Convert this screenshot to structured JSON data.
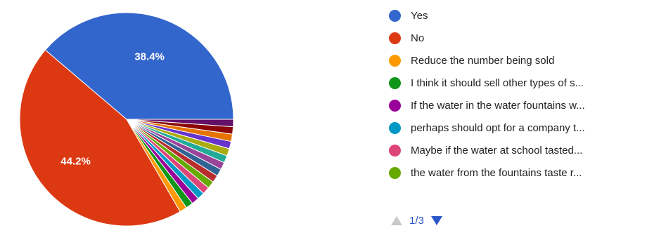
{
  "chart_data": {
    "type": "pie",
    "slices": [
      {
        "label": "Yes",
        "value": 38.4,
        "color": "#3366cc",
        "data_label": "38.4%"
      },
      {
        "label": "No",
        "value": 44.2,
        "color": "#dc3912",
        "data_label": "44.2%"
      },
      {
        "label": "Reduce the number being sold",
        "value": 1.1,
        "color": "#ff9900"
      },
      {
        "label": "I think it should sell other types of s...",
        "value": 1.1,
        "color": "#109618"
      },
      {
        "label": "If the water in the water fountains w...",
        "value": 1.1,
        "color": "#990099"
      },
      {
        "label": "perhaps should opt for a company t...",
        "value": 1.1,
        "color": "#0099c6"
      },
      {
        "label": "Maybe if the water at school tasted...",
        "value": 1.1,
        "color": "#dd4477"
      },
      {
        "label": "the water from the fountains taste r...",
        "value": 1.1,
        "color": "#66aa00"
      },
      {
        "value": 1.1,
        "color": "#b82e2e"
      },
      {
        "value": 1.1,
        "color": "#316395"
      },
      {
        "value": 1.1,
        "color": "#994499"
      },
      {
        "value": 1.1,
        "color": "#22aa99"
      },
      {
        "value": 1.1,
        "color": "#aaaa11"
      },
      {
        "value": 1.1,
        "color": "#6633cc"
      },
      {
        "value": 1.1,
        "color": "#e67300"
      },
      {
        "value": 1.1,
        "color": "#8b0707"
      },
      {
        "value": 1.1,
        "color": "#651067"
      }
    ]
  },
  "legend": {
    "items": [
      {
        "label": "Yes",
        "color": "#3366cc"
      },
      {
        "label": "No",
        "color": "#dc3912"
      },
      {
        "label": "Reduce the number being sold",
        "color": "#ff9900"
      },
      {
        "label": "I think it should sell other types of s...",
        "color": "#109618"
      },
      {
        "label": "If the water in the water fountains w...",
        "color": "#990099"
      },
      {
        "label": "perhaps should opt for a company t...",
        "color": "#0099c6"
      },
      {
        "label": "Maybe if the water at school tasted...",
        "color": "#dd4477"
      },
      {
        "label": "the water from the fountains taste r...",
        "color": "#66aa00"
      }
    ]
  },
  "pager": {
    "text": "1/3",
    "prev_icon": "triangle-up-icon",
    "next_icon": "triangle-down-icon"
  }
}
